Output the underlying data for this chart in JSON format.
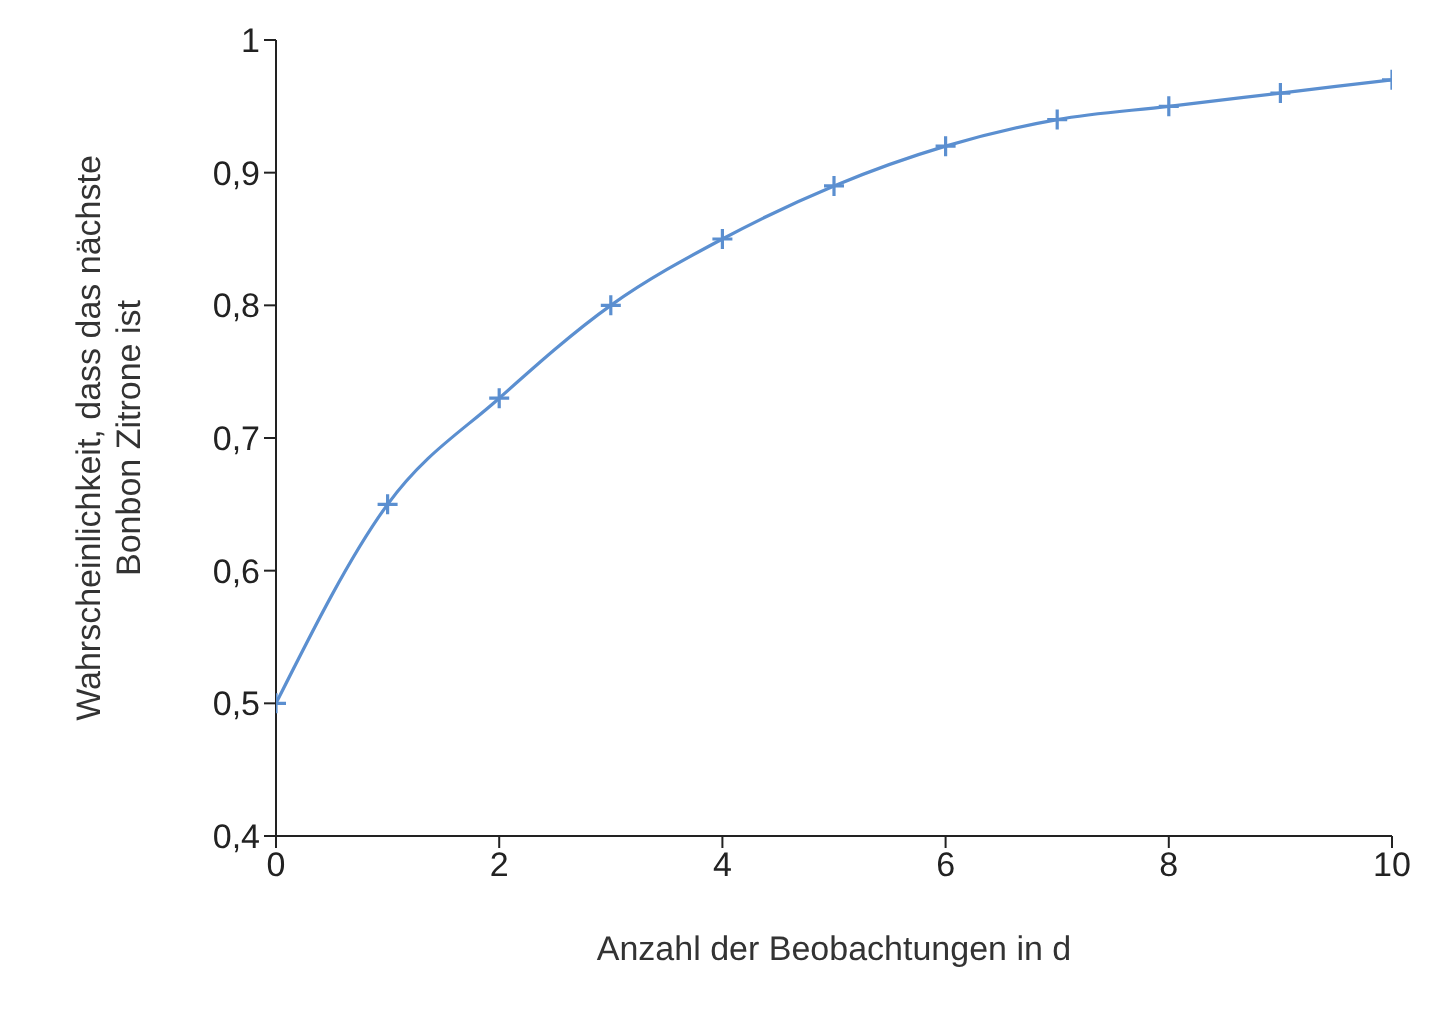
{
  "chart_data": {
    "type": "line",
    "xlabel": "Anzahl der Beobachtungen in d",
    "ylabel": "Wahrscheinlichkeit, dass das nächste\nBonbon Zitrone ist",
    "x": [
      0,
      1,
      2,
      3,
      4,
      5,
      6,
      7,
      8,
      9,
      10
    ],
    "series": [
      {
        "color": "#5b8fd0",
        "values": [
          0.5,
          0.65,
          0.73,
          0.8,
          0.85,
          0.89,
          0.92,
          0.94,
          0.95,
          0.96,
          0.97
        ]
      }
    ],
    "xlim": [
      0,
      10
    ],
    "xticks": [
      0,
      2,
      4,
      6,
      8,
      10
    ],
    "ylim": [
      0.4,
      1
    ],
    "yticks": [
      {
        "value": 0.4,
        "label": "0,4"
      },
      {
        "value": 0.5,
        "label": "0,5"
      },
      {
        "value": 0.6,
        "label": "0,6"
      },
      {
        "value": 0.7,
        "label": "0,7"
      },
      {
        "value": 0.8,
        "label": "0,8"
      },
      {
        "value": 0.9,
        "label": "0,9"
      },
      {
        "value": 1,
        "label": "1"
      }
    ],
    "grid": false,
    "legend": false,
    "marker": "cross",
    "line_style": "solid"
  }
}
